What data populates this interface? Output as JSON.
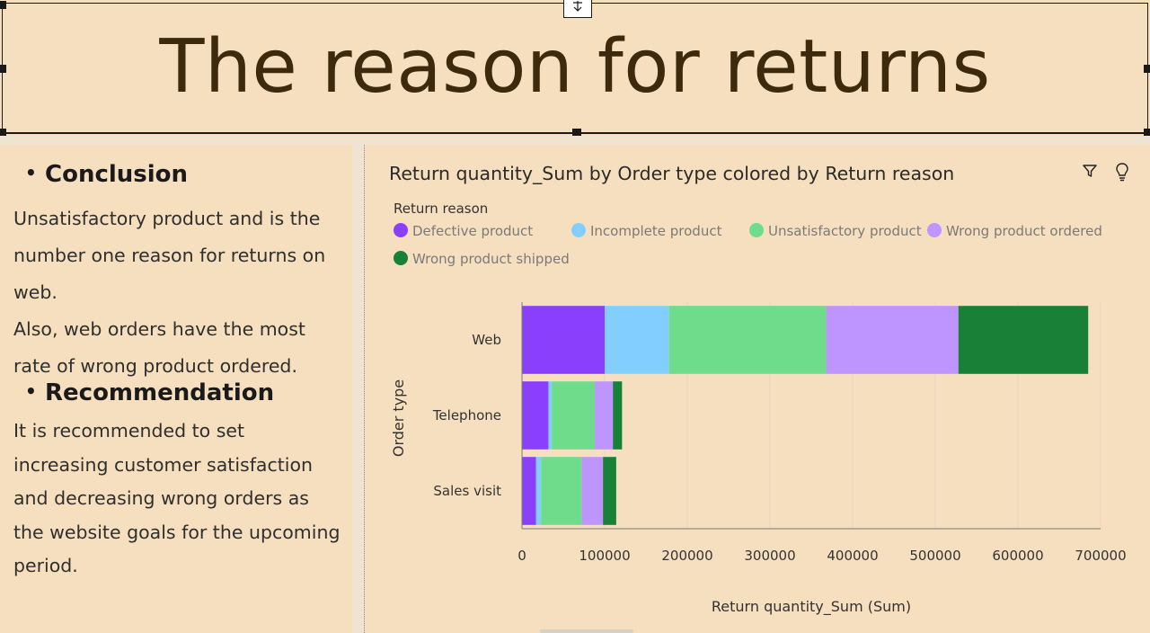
{
  "banner": {
    "title": "The reason for returns"
  },
  "left_panel": {
    "conclusion_heading": "Conclusion",
    "conclusion_text": "Unsatisfactory product and is the number one reason for returns on web. Also, web orders have the most rate of wrong product ordered.",
    "conclusion_lines": [
      "Unsatisfactory product and is the",
      "number one reason for returns on",
      "web.",
      "Also, web orders have the most",
      "rate of wrong product ordered."
    ],
    "recommendation_heading": "Recommendation",
    "recommendation_lines": [
      "It is recommended to set",
      "increasing customer satisfaction",
      "and decreasing wrong orders as",
      "the website goals for the upcoming",
      "period."
    ]
  },
  "toolbar": {
    "filter_icon": "filter-icon",
    "insight_icon": "lightbulb-icon"
  },
  "chart_data": {
    "type": "bar",
    "orientation": "horizontal",
    "stacked": true,
    "title": "Return quantity_Sum by Order type colored by Return reason",
    "xlabel": "Return quantity_Sum (Sum)",
    "ylabel": "Order type",
    "legend_title": "Return reason",
    "legend_position": "top",
    "categories": [
      "Web",
      "Telephone",
      "Sales visit"
    ],
    "xlim": [
      0,
      700000
    ],
    "xticks": [
      0,
      100000,
      200000,
      300000,
      400000,
      500000,
      600000,
      700000
    ],
    "xtick_labels": [
      "0",
      "100000",
      "200000",
      "300000",
      "400000",
      "500000",
      "600000",
      "700000"
    ],
    "grid": true,
    "series": [
      {
        "name": "Defective product",
        "color": "#8a3ffc",
        "values": [
          100000,
          32000,
          17000
        ]
      },
      {
        "name": "Incomplete product",
        "color": "#82cfff",
        "values": [
          78000,
          4000,
          6000
        ]
      },
      {
        "name": "Unsatisfactory product",
        "color": "#6fdc8c",
        "values": [
          190000,
          52000,
          49000
        ]
      },
      {
        "name": "Wrong product ordered",
        "color": "#be95ff",
        "values": [
          160000,
          22000,
          26000
        ]
      },
      {
        "name": "Wrong product shipped",
        "color": "#198038",
        "values": [
          157000,
          11000,
          16000
        ]
      }
    ]
  }
}
